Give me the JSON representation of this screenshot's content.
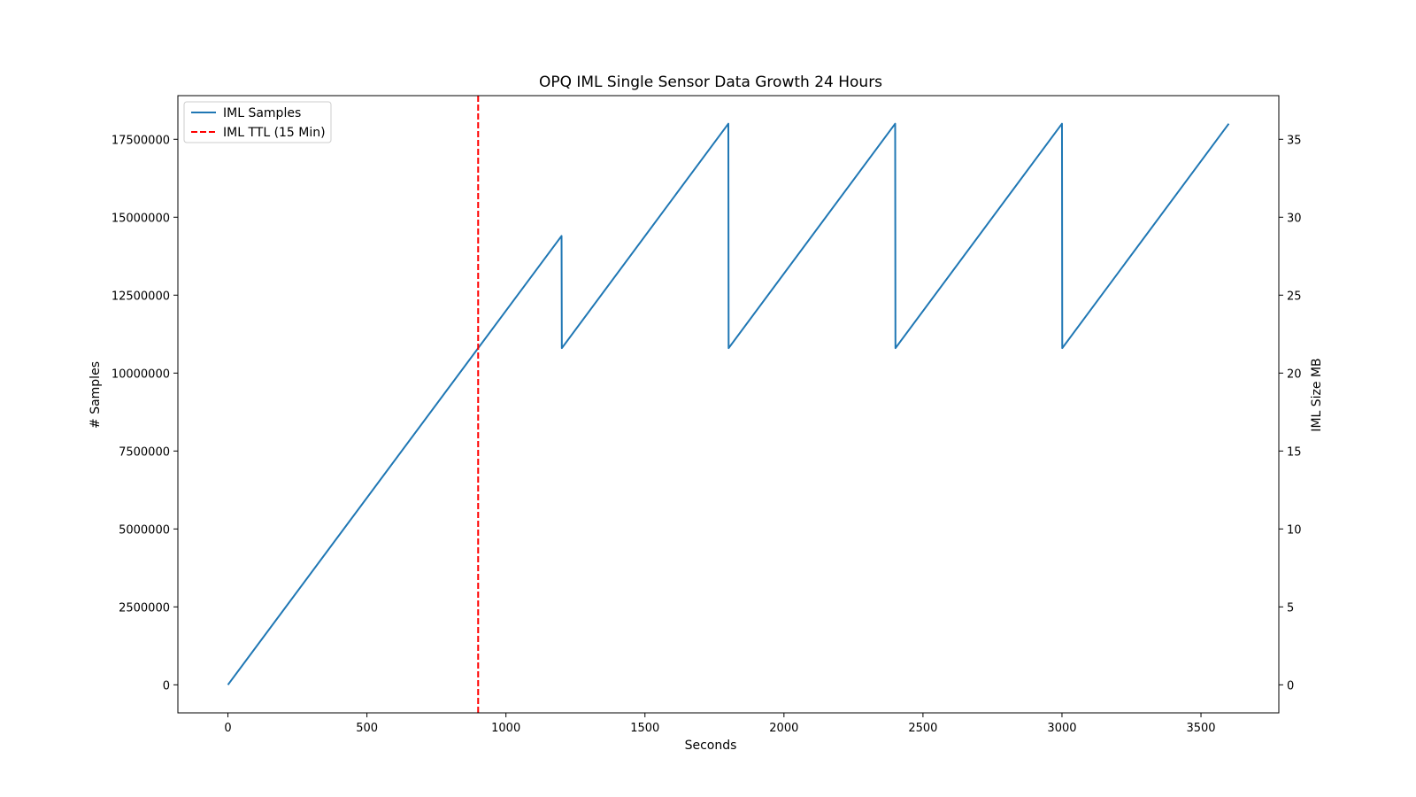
{
  "chart_data": {
    "type": "line",
    "title": "OPQ IML Single Sensor Data Growth 24 Hours",
    "xlabel": "Seconds",
    "ylabel": "# Samples",
    "y2label": "IML Size MB",
    "xlim": [
      -180,
      3780
    ],
    "ylim": [
      -900000,
      18900000
    ],
    "y2lim": [
      -1.8,
      37.8
    ],
    "xticks": [
      0,
      500,
      1000,
      1500,
      2000,
      2500,
      3000,
      3500
    ],
    "yticks": [
      0,
      2500000,
      5000000,
      7500000,
      10000000,
      12500000,
      15000000,
      17500000
    ],
    "y2ticks": [
      0,
      5,
      10,
      15,
      20,
      25,
      30,
      35
    ],
    "grid": false,
    "legend_position": "upper-left",
    "series": [
      {
        "name": "IML Samples",
        "color": "#1f77b4",
        "style": "solid",
        "x": [
          0,
          1200,
          1201,
          1800,
          1801,
          2400,
          2401,
          3000,
          3001,
          3600
        ],
        "y": [
          0,
          14400000,
          10800000,
          18000000,
          10800000,
          18000000,
          10800000,
          18000000,
          10800000,
          18000000
        ]
      }
    ],
    "vlines": [
      {
        "name": "IML TTL (15 Min)",
        "x": 900,
        "color": "#ff0000",
        "style": "dashed"
      }
    ]
  }
}
